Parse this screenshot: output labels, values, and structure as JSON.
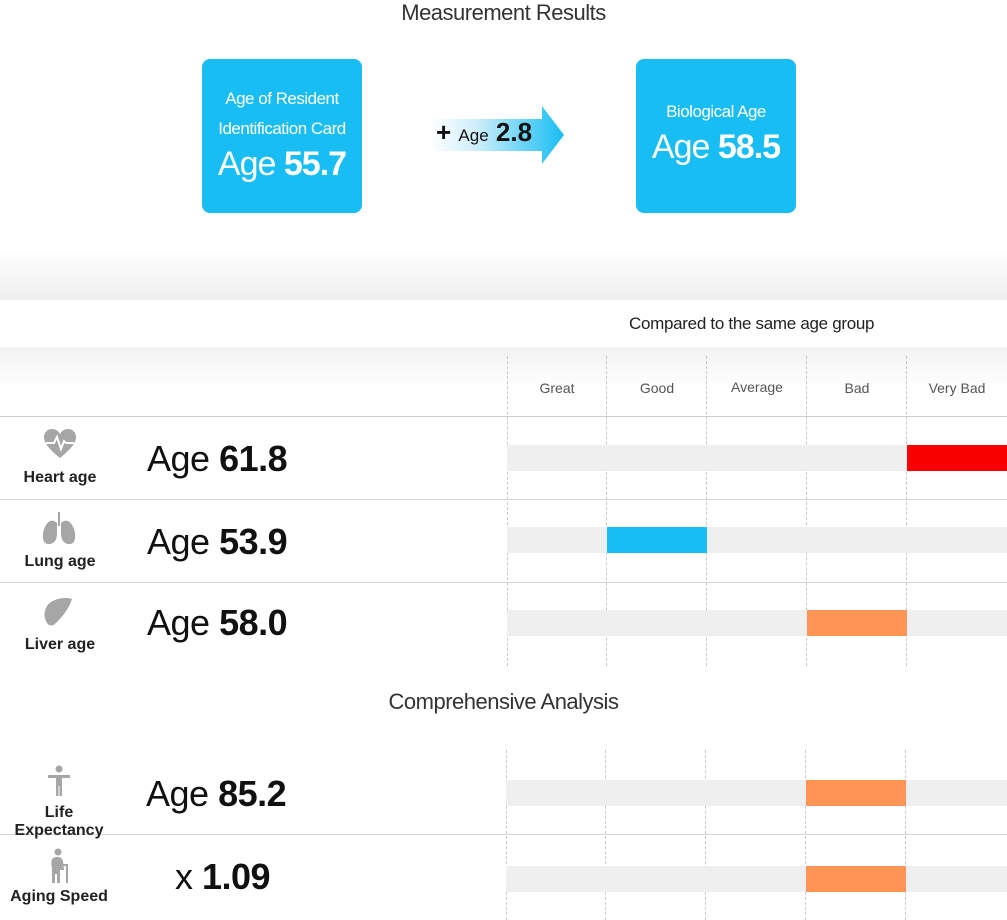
{
  "header": {
    "title": "Measurement Results"
  },
  "cards": {
    "resident": {
      "label_line1": "Age of Resident",
      "label_line2": "Identification Card",
      "prefix": "Age",
      "value": "55.7"
    },
    "difference": {
      "sign": "+",
      "prefix": "Age",
      "value": "2.8"
    },
    "biological": {
      "label": "Biological Age",
      "prefix": "Age",
      "value": "58.5"
    }
  },
  "comparison": {
    "caption": "Compared to the same age group",
    "columns": [
      "Great",
      "Good",
      "Average",
      "Bad",
      "Very Bad"
    ]
  },
  "organs": [
    {
      "label": "Heart age",
      "prefix": "Age",
      "value": "61.8",
      "icon": "heart-icon",
      "rating": "Very Bad",
      "color": "#fb0000"
    },
    {
      "label": "Lung age",
      "prefix": "Age",
      "value": "53.9",
      "icon": "lungs-icon",
      "rating": "Good",
      "color": "#18bdf3"
    },
    {
      "label": "Liver age",
      "prefix": "Age",
      "value": "58.0",
      "icon": "liver-icon",
      "rating": "Bad",
      "color": "#ff9455"
    }
  ],
  "analysis": {
    "title": "Comprehensive Analysis",
    "rows": [
      {
        "label": "Life Expectancy",
        "prefix": "Age",
        "value": "85.2",
        "icon": "person-icon",
        "rating": "Bad",
        "color": "#ff9455"
      },
      {
        "label": "Aging Speed",
        "prefix": "x",
        "value": "1.09",
        "icon": "elderly-person-icon",
        "rating": "Bad",
        "color": "#ff9455"
      }
    ]
  },
  "colors": {
    "accent": "#18bdf3",
    "very_bad": "#fb0000",
    "bad": "#ff9455",
    "good": "#18bdf3"
  }
}
